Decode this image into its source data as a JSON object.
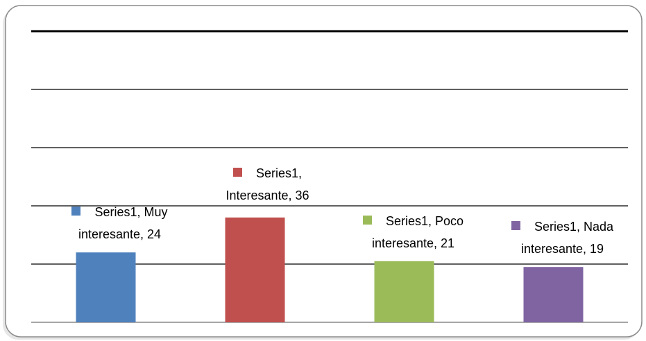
{
  "chart_data": {
    "type": "bar",
    "categories": [
      "Muy interesante",
      "Interesante",
      "Poco interesante",
      "Nada interesante"
    ],
    "series": [
      {
        "name": "Series1",
        "colors": [
          "#4f81bd",
          "#c0504d",
          "#9bbb59",
          "#8064a2"
        ],
        "values": [
          24,
          36,
          21,
          19
        ],
        "value_labels": [
          "Series1, Muy interesante, 24",
          "Series1, Interesante, 36",
          "Series1, Poco interesante, 21",
          "Series1, Nada interesante, 19"
        ]
      }
    ],
    "ylim": [
      0,
      100
    ],
    "yticks": [
      0,
      20,
      40,
      60,
      80,
      100
    ],
    "grid": true
  }
}
